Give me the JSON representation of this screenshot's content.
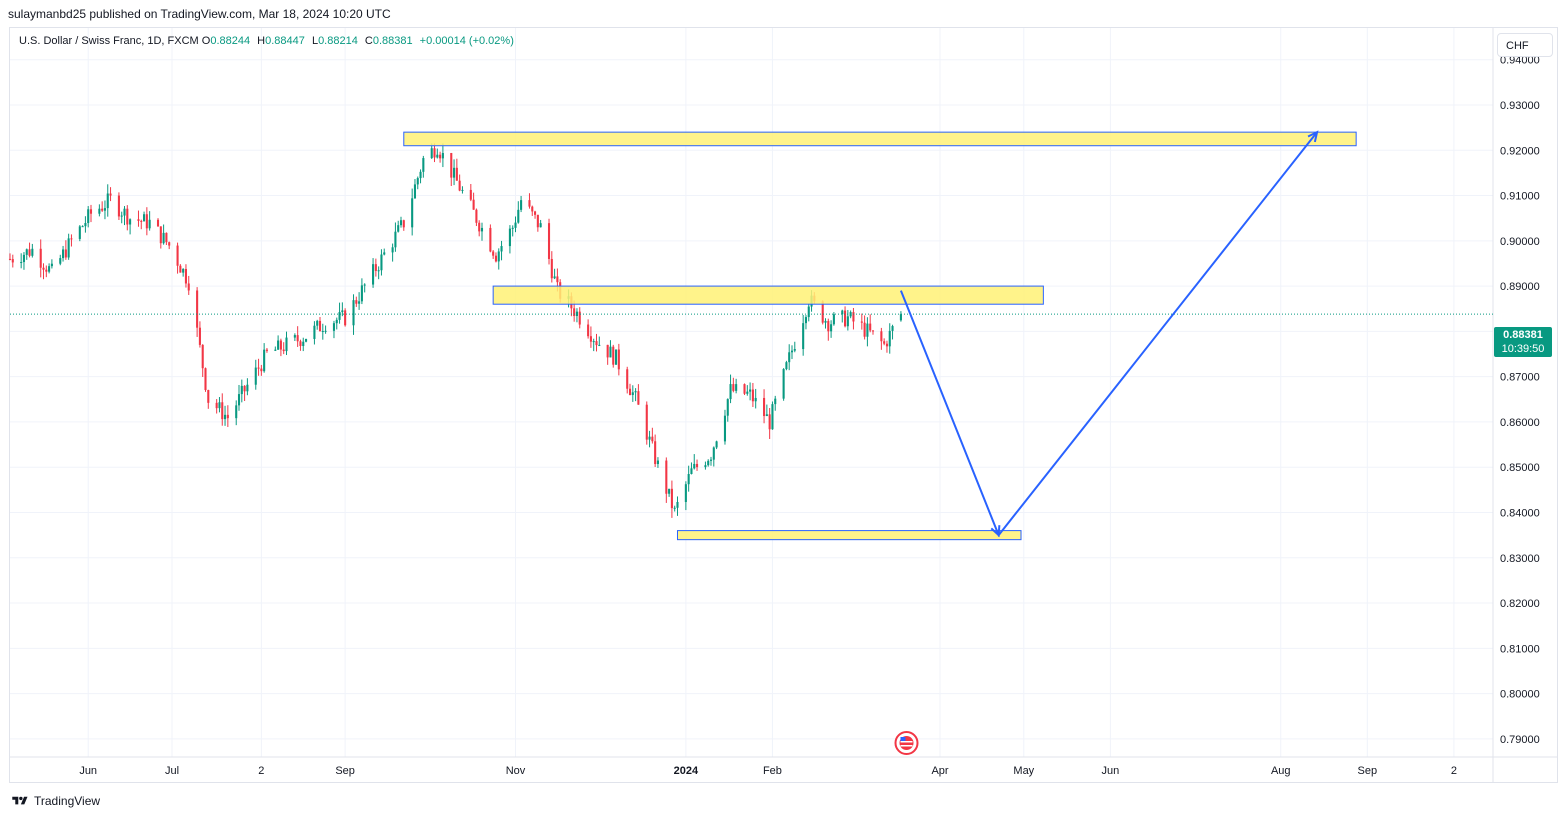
{
  "publisher": "sulaymanbd25 published on TradingView.com, Mar 18, 2024 10:20 UTC",
  "legend": {
    "symbol": "U.S. Dollar / Swiss Franc, 1D, FXCM",
    "open_label": "O",
    "open": "0.88244",
    "high_label": "H",
    "high": "0.88447",
    "low_label": "L",
    "low": "0.88214",
    "close_label": "C",
    "close": "0.88381",
    "change": "+0.00014 (+0.02%)"
  },
  "currency": "CHF",
  "last_price": {
    "value": "0.88381",
    "countdown": "10:39:50"
  },
  "footer": "TradingView",
  "colors": {
    "up": "#089981",
    "down": "#f23645",
    "zone_fill": "#fff176",
    "zone_border": "#2962ff",
    "arrow": "#2962ff",
    "grid": "#f0f3fa"
  },
  "chart_data": {
    "type": "candlestick",
    "y_ticks": [
      "0.94000",
      "0.93000",
      "0.92000",
      "0.91000",
      "0.90000",
      "0.89000",
      "0.88000",
      "0.87000",
      "0.86000",
      "0.85000",
      "0.84000",
      "0.83000",
      "0.82000",
      "0.81000",
      "0.80000",
      "0.79000"
    ],
    "ylim": [
      0.786,
      0.947
    ],
    "x_ticks": [
      {
        "label": "Jun",
        "date": "2023-06-01"
      },
      {
        "label": "Jul",
        "date": "2023-07-01"
      },
      {
        "label": "2",
        "date": "2023-08-02"
      },
      {
        "label": "Sep",
        "date": "2023-09-01"
      },
      {
        "label": "Nov",
        "date": "2023-11-01"
      },
      {
        "label": "2024",
        "date": "2024-01-01",
        "bold": true
      },
      {
        "label": "Feb",
        "date": "2024-02-01"
      },
      {
        "label": "Apr",
        "date": "2024-04-01"
      },
      {
        "label": "May",
        "date": "2024-05-01"
      },
      {
        "label": "Jun",
        "date": "2024-06-01"
      },
      {
        "label": "Aug",
        "date": "2024-08-01"
      },
      {
        "label": "Sep",
        "date": "2024-09-01"
      },
      {
        "label": "2",
        "date": "2024-10-02"
      }
    ],
    "xlim": [
      "2023-05-04",
      "2024-10-16"
    ],
    "closes": [
      {
        "date": "2023-05-04",
        "close": 0.896
      },
      {
        "date": "2023-05-12",
        "close": 0.898
      },
      {
        "date": "2023-05-19",
        "close": 0.893
      },
      {
        "date": "2023-05-26",
        "close": 0.9
      },
      {
        "date": "2023-06-02",
        "close": 0.906
      },
      {
        "date": "2023-06-09",
        "close": 0.909
      },
      {
        "date": "2023-06-16",
        "close": 0.905
      },
      {
        "date": "2023-06-23",
        "close": 0.904
      },
      {
        "date": "2023-06-30",
        "close": 0.899
      },
      {
        "date": "2023-07-07",
        "close": 0.891
      },
      {
        "date": "2023-07-14",
        "close": 0.865
      },
      {
        "date": "2023-07-21",
        "close": 0.861
      },
      {
        "date": "2023-07-28",
        "close": 0.868
      },
      {
        "date": "2023-08-04",
        "close": 0.875
      },
      {
        "date": "2023-08-11",
        "close": 0.877
      },
      {
        "date": "2023-08-18",
        "close": 0.879
      },
      {
        "date": "2023-08-25",
        "close": 0.882
      },
      {
        "date": "2023-09-01",
        "close": 0.883
      },
      {
        "date": "2023-09-08",
        "close": 0.89
      },
      {
        "date": "2023-09-15",
        "close": 0.897
      },
      {
        "date": "2023-09-22",
        "close": 0.904
      },
      {
        "date": "2023-09-29",
        "close": 0.918
      },
      {
        "date": "2023-10-04",
        "close": 0.921
      },
      {
        "date": "2023-10-11",
        "close": 0.913
      },
      {
        "date": "2023-10-18",
        "close": 0.905
      },
      {
        "date": "2023-10-25",
        "close": 0.897
      },
      {
        "date": "2023-10-31",
        "close": 0.903
      },
      {
        "date": "2023-11-03",
        "close": 0.909
      },
      {
        "date": "2023-11-10",
        "close": 0.903
      },
      {
        "date": "2023-11-16",
        "close": 0.889
      },
      {
        "date": "2023-11-23",
        "close": 0.884
      },
      {
        "date": "2023-11-30",
        "close": 0.878
      },
      {
        "date": "2023-12-07",
        "close": 0.874
      },
      {
        "date": "2023-12-14",
        "close": 0.865
      },
      {
        "date": "2023-12-21",
        "close": 0.852
      },
      {
        "date": "2023-12-28",
        "close": 0.84
      },
      {
        "date": "2024-01-03",
        "close": 0.849
      },
      {
        "date": "2024-01-10",
        "close": 0.853
      },
      {
        "date": "2024-01-17",
        "close": 0.867
      },
      {
        "date": "2024-01-24",
        "close": 0.866
      },
      {
        "date": "2024-01-31",
        "close": 0.86
      },
      {
        "date": "2024-02-07",
        "close": 0.874
      },
      {
        "date": "2024-02-14",
        "close": 0.887
      },
      {
        "date": "2024-02-21",
        "close": 0.882
      },
      {
        "date": "2024-02-28",
        "close": 0.883
      },
      {
        "date": "2024-03-06",
        "close": 0.88
      },
      {
        "date": "2024-03-12",
        "close": 0.877
      },
      {
        "date": "2024-03-18",
        "close": 0.88381
      }
    ],
    "zones": [
      {
        "from": "2023-09-22",
        "to": "2024-08-28",
        "low": 0.921,
        "high": 0.924
      },
      {
        "from": "2023-10-24",
        "to": "2024-05-08",
        "low": 0.886,
        "high": 0.89
      },
      {
        "from": "2023-12-29",
        "to": "2024-04-30",
        "low": 0.834,
        "high": 0.836
      }
    ],
    "projection": [
      {
        "date": "2024-03-18",
        "price": 0.889
      },
      {
        "date": "2024-04-22",
        "price": 0.835
      },
      {
        "date": "2024-08-14",
        "price": 0.924
      }
    ],
    "last_price_line": 0.88381
  }
}
